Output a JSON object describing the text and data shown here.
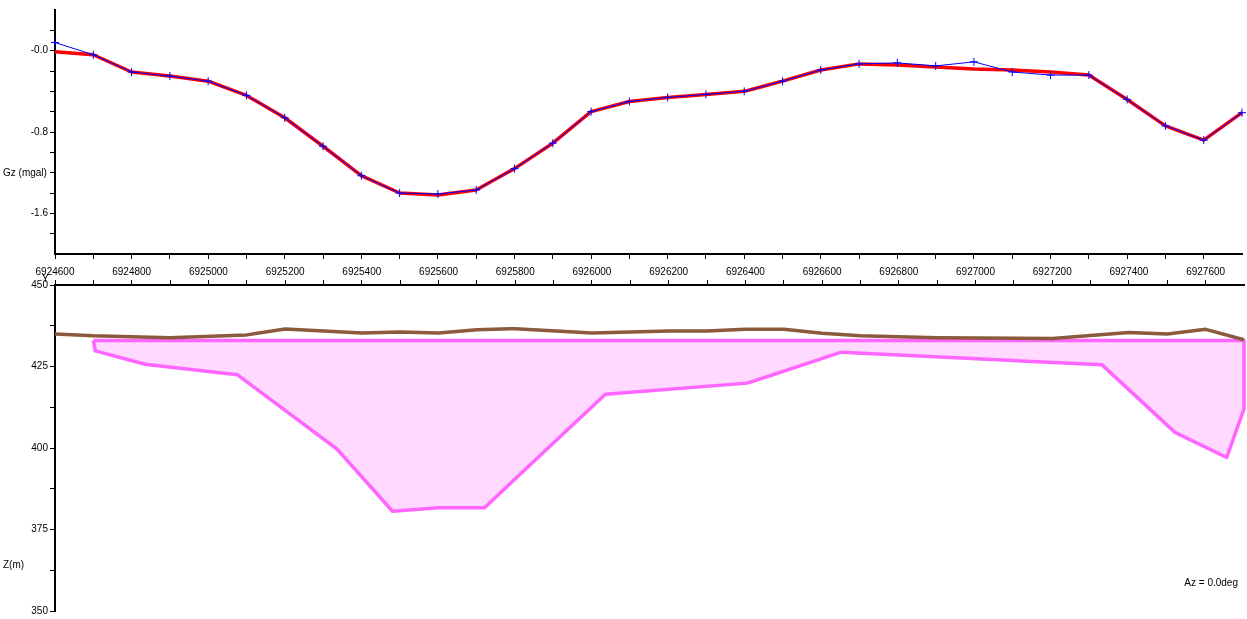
{
  "chart_data": [
    {
      "type": "line",
      "ylabel": "Gz (mgal)",
      "tick_labels": "y",
      "xlim": [
        6924600,
        6927700
      ],
      "xticks": [
        6924600,
        6924700,
        6924800,
        6924900,
        6925000,
        6925100,
        6925200,
        6925300,
        6925400,
        6925500,
        6925600,
        6925700,
        6925800,
        6925900,
        6926000,
        6926100,
        6926200,
        6926300,
        6926400,
        6926500,
        6926600,
        6926700,
        6926800,
        6926900,
        6927000,
        6927100,
        6927200,
        6927300,
        6927400,
        6927500,
        6927600
      ],
      "ylim": [
        -2.0,
        0.4
      ],
      "yticks": [
        {
          "value": 0.2,
          "label": null
        },
        {
          "value": 0,
          "label": "-0.0"
        },
        {
          "value": -0.2,
          "label": null
        },
        {
          "value": -0.4,
          "label": null
        },
        {
          "value": -0.6,
          "label": null
        },
        -0.8,
        {
          "value": -1.0,
          "label": null
        },
        {
          "value": -1.2,
          "label": null
        },
        {
          "value": -1.4,
          "label": null
        },
        -1.6,
        {
          "value": -1.8,
          "label": null
        }
      ],
      "x": [
        6924600,
        6924700,
        6924800,
        6924900,
        6925000,
        6925100,
        6925200,
        6925300,
        6925400,
        6925500,
        6925600,
        6925700,
        6925800,
        6925900,
        6926000,
        6926100,
        6926200,
        6926300,
        6926400,
        6926500,
        6926600,
        6926700,
        6926800,
        6926900,
        6927000,
        6927100,
        6927200,
        6927300,
        6927400,
        6927500,
        6927600,
        6927700
      ],
      "series": [
        {
          "color": "#0000ff",
          "marker": "cross",
          "values": [
            0.08,
            -0.04,
            -0.21,
            -0.25,
            -0.3,
            -0.44,
            -0.66,
            -0.94,
            -1.23,
            -1.4,
            -1.41,
            -1.37,
            -1.16,
            -0.91,
            -0.6,
            -0.5,
            -0.46,
            -0.43,
            -0.4,
            -0.3,
            -0.19,
            -0.13,
            -0.12,
            -0.15,
            -0.11,
            -0.21,
            -0.24,
            -0.24,
            -0.48,
            -0.74,
            -0.88,
            -0.61
          ]
        },
        {
          "color": "#ff0000",
          "values": [
            -0.01,
            -0.04,
            -0.21,
            -0.25,
            -0.3,
            -0.44,
            -0.66,
            -0.94,
            -1.23,
            -1.4,
            -1.42,
            -1.37,
            -1.16,
            -0.91,
            -0.6,
            -0.5,
            -0.46,
            -0.43,
            -0.4,
            -0.3,
            -0.19,
            -0.13,
            -0.14,
            -0.16,
            -0.18,
            -0.19,
            -0.21,
            -0.24,
            -0.48,
            -0.74,
            -0.88,
            -0.61
          ]
        }
      ]
    },
    {
      "type": "line",
      "xlabel": "Y",
      "ylabel": "Z(m)",
      "annotations": [
        "Az = 0.0deg"
      ],
      "xlim": [
        6924600,
        6927700
      ],
      "xticks": [
        6924600,
        {
          "value": 6924700,
          "label": null
        },
        6924800,
        {
          "value": 6924900,
          "label": null
        },
        6925000,
        {
          "value": 6925100,
          "label": null
        },
        6925200,
        {
          "value": 6925300,
          "label": null
        },
        6925400,
        {
          "value": 6925500,
          "label": null
        },
        6925600,
        {
          "value": 6925700,
          "label": null
        },
        6925800,
        {
          "value": 6925900,
          "label": null
        },
        6926000,
        {
          "value": 6926100,
          "label": null
        },
        6926200,
        {
          "value": 6926300,
          "label": null
        },
        6926400,
        {
          "value": 6926500,
          "label": null
        },
        6926600,
        {
          "value": 6926700,
          "label": null
        },
        6926800,
        {
          "value": 6926900,
          "label": null
        },
        6927000,
        {
          "value": 6927100,
          "label": null
        },
        6927200,
        {
          "value": 6927300,
          "label": null
        },
        6927400,
        {
          "value": 6927500,
          "label": null
        },
        6927600
      ],
      "ylim": [
        350,
        450
      ],
      "yticks": [
        450,
        {
          "value": 437.5,
          "label": null
        },
        425,
        {
          "value": 412.5,
          "label": null
        },
        400,
        {
          "value": 387.5,
          "label": null
        },
        375,
        {
          "value": 362.5,
          "label": null
        },
        350
      ],
      "series": [
        {
          "type": "line",
          "color": "#8b5a3c",
          "x": [
            6924600,
            6924700,
            6924900,
            6925100,
            6925200,
            6925400,
            6925500,
            6925600,
            6925700,
            6925800,
            6926000,
            6926100,
            6926200,
            6926300,
            6926400,
            6926500,
            6926600,
            6926700,
            6926900,
            6927200,
            6927400,
            6927500,
            6927600,
            6927700
          ],
          "values": [
            435.0,
            434.4,
            433.8,
            434.7,
            436.5,
            435.3,
            435.6,
            435.3,
            436.3,
            436.6,
            435.3,
            435.6,
            435.9,
            435.9,
            436.4,
            436.4,
            435.2,
            434.4,
            433.8,
            433.6,
            435.4,
            435.0,
            436.4,
            433.2
          ]
        },
        {
          "type": "area",
          "color": "#ff66ff",
          "x": [
            6924700,
            6924705,
            6924835,
            6925075,
            6925335,
            6925480,
            6925600,
            6925720,
            6925880,
            6926035,
            6926405,
            6926650,
            6927330,
            6927520,
            6927655,
            6927700,
            6927700,
            6924700
          ],
          "values": [
            433,
            429.8,
            425.7,
            422.5,
            399.7,
            380.6,
            381.7,
            381.7,
            399.4,
            416.5,
            419.9,
            429.4,
            425.5,
            404.8,
            397.1,
            412,
            433,
            433
          ]
        }
      ]
    }
  ]
}
